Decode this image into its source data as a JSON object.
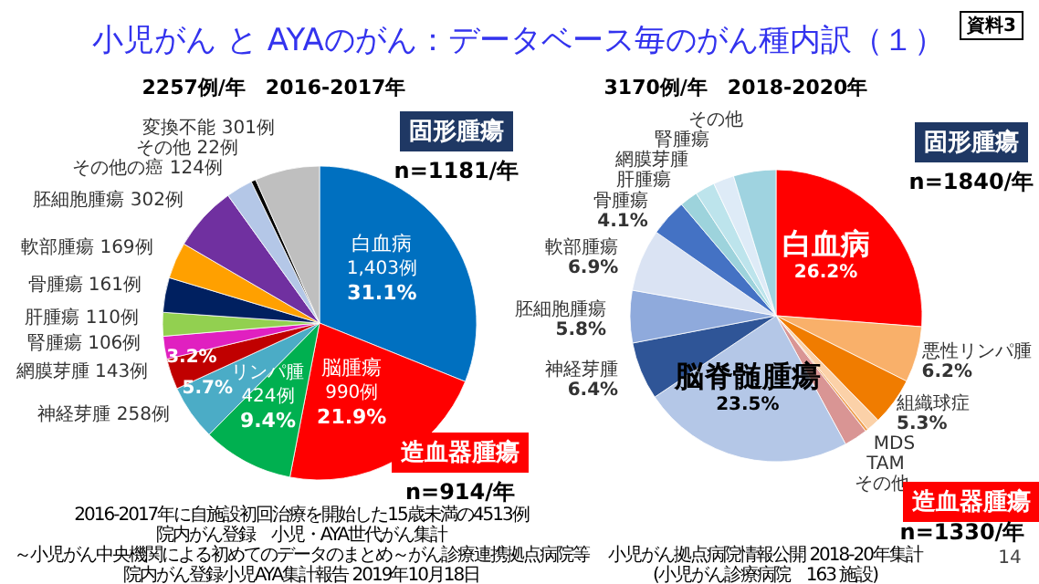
{
  "chart_data": [
    {
      "type": "pie",
      "title": "小児がん と AYAのがん：データベース毎のがん種内訳（１）",
      "subtitle": "2257例/年　2016-2017年",
      "categories": [
        "白血病",
        "脳腫瘍",
        "リンパ腫",
        "神経芽腫",
        "網膜芽腫",
        "腎腫瘍",
        "肝腫瘍",
        "骨腫瘍",
        "軟部腫瘍",
        "胚細胞腫瘍",
        "その他の癌",
        "その他",
        "変換不能"
      ],
      "values": [
        1403,
        990,
        424,
        258,
        143,
        106,
        110,
        161,
        169,
        302,
        124,
        22,
        301
      ],
      "value_labels": [
        "1,403例",
        "990例",
        "424例",
        "258例",
        "143例",
        "106例",
        "110例",
        "161例",
        "169例",
        "302例",
        "124例",
        "22例",
        "301例"
      ],
      "colors": [
        "#0070c0",
        "#ff0000",
        "#00b050",
        "#4bacc6",
        "#c00000",
        "#e020c0",
        "#92d050",
        "#002060",
        "#ffa000",
        "#7030a0",
        "#b4c7e7",
        "#000000",
        "#bfbfbf"
      ],
      "annotations": [
        "固形腫瘍",
        "n=1181/年",
        "造血器腫瘍",
        "n=914/年",
        "2016-2017年に自施設初回治療を開始した15歳未満の4513例",
        "院内がん登録　小児・AYA世代がん集計",
        "～小児がん中央機関による初めてのデータのまとめ～がん診療連携拠点病院等",
        "院内がん登録小児AYA集計報告 2019年10月18日",
        "資料3",
        "14",
        {
          "text": "31.1%",
          "x": "白血病"
        },
        {
          "text": "21.9%",
          "x": "脳腫瘍"
        },
        {
          "text": "9.4%",
          "x": "リンパ腫"
        },
        {
          "text": "5.7%",
          "x": "神経芽腫"
        },
        {
          "text": "3.2%",
          "x": "網膜芽腫"
        }
      ]
    },
    {
      "type": "pie",
      "subtitle": "3170例/年　2018-2020年",
      "categories": [
        "白血病",
        "悪性リンパ腫",
        "組織球症",
        "MDS",
        "TAM",
        "その他",
        "脳脊髄腫瘍",
        "神経芽腫",
        "胚細胞腫瘍",
        "軟部腫瘍",
        "骨腫瘍",
        "肝腫瘍",
        "網膜芽腫",
        "腎腫瘍",
        "その他"
      ],
      "values": [
        26.2,
        6.2,
        5.3,
        1.5,
        0.3,
        2.6,
        23.5,
        6.4,
        5.8,
        6.9,
        4.1,
        2.0,
        2.2,
        2.3,
        4.7
      ],
      "value_labels": [
        "26.2%",
        "6.2%",
        "5.3%",
        null,
        null,
        null,
        "23.5%",
        "6.4%",
        "5.8%",
        "6.9%",
        "4.1%",
        null,
        null,
        null,
        null
      ],
      "colors": [
        "#ff0000",
        "#f9b06a",
        "#f07c00",
        "#fbd1a8",
        "#f0a050",
        "#d99594",
        "#b4c7e7",
        "#2f5597",
        "#8faadc",
        "#dae3f3",
        "#4472c4",
        "#9dd3dc",
        "#bde4ec",
        "#deebf7",
        "#9fd3e0"
      ],
      "annotations": [
        "固形腫瘍",
        "n=1840/年",
        "造血器腫瘍",
        "n=1330/年",
        "小児がん拠点病院情報公開 2018-20年集計",
        "(小児がん診療病院　163 施設)"
      ]
    }
  ]
}
